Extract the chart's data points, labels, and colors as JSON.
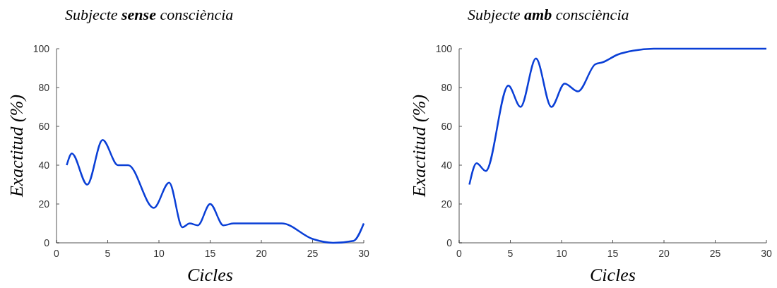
{
  "chart_data": [
    {
      "type": "line",
      "title": "Subjecte sense consciència",
      "xlabel": "Cicles",
      "ylabel": "Exactitud (%)",
      "xlim": [
        0,
        30
      ],
      "xticks": [
        0,
        5,
        10,
        15,
        20,
        25,
        30
      ],
      "ylim": [
        0,
        100
      ],
      "yticks": [
        0,
        20,
        40,
        60,
        80,
        100
      ],
      "grid": false,
      "marker": "none",
      "line_style": "solid",
      "series": [
        {
          "color": "#0a3fd6",
          "x": [
            1,
            1.5,
            3,
            4.5,
            6,
            7,
            9.5,
            11,
            12.3,
            13,
            13.8,
            15,
            16.3,
            17.3,
            20,
            22,
            25,
            27,
            29,
            30
          ],
          "values": [
            40,
            46,
            30,
            53,
            40,
            40,
            18,
            31,
            8,
            10,
            9,
            20,
            9,
            10,
            10,
            10,
            2,
            0,
            1,
            10
          ]
        }
      ]
    },
    {
      "type": "line",
      "title": "Subjecte amb consciència",
      "xlabel": "Cicles",
      "ylabel": "Exactitud (%)",
      "xlim": [
        0,
        30
      ],
      "xticks": [
        0,
        5,
        10,
        15,
        20,
        25,
        30
      ],
      "ylim": [
        0,
        100
      ],
      "yticks": [
        0,
        20,
        40,
        60,
        80,
        100
      ],
      "grid": false,
      "marker": "none",
      "line_style": "solid",
      "series": [
        {
          "color": "#0a3fd6",
          "x": [
            1,
            1.7,
            2.6,
            4.8,
            6,
            7.5,
            9,
            10.3,
            11.6,
            13.3,
            14,
            15.5,
            17,
            19,
            30
          ],
          "values": [
            30,
            41,
            37,
            81,
            70,
            95,
            70,
            82,
            78,
            92,
            93,
            97,
            99,
            100,
            100
          ]
        }
      ]
    }
  ]
}
